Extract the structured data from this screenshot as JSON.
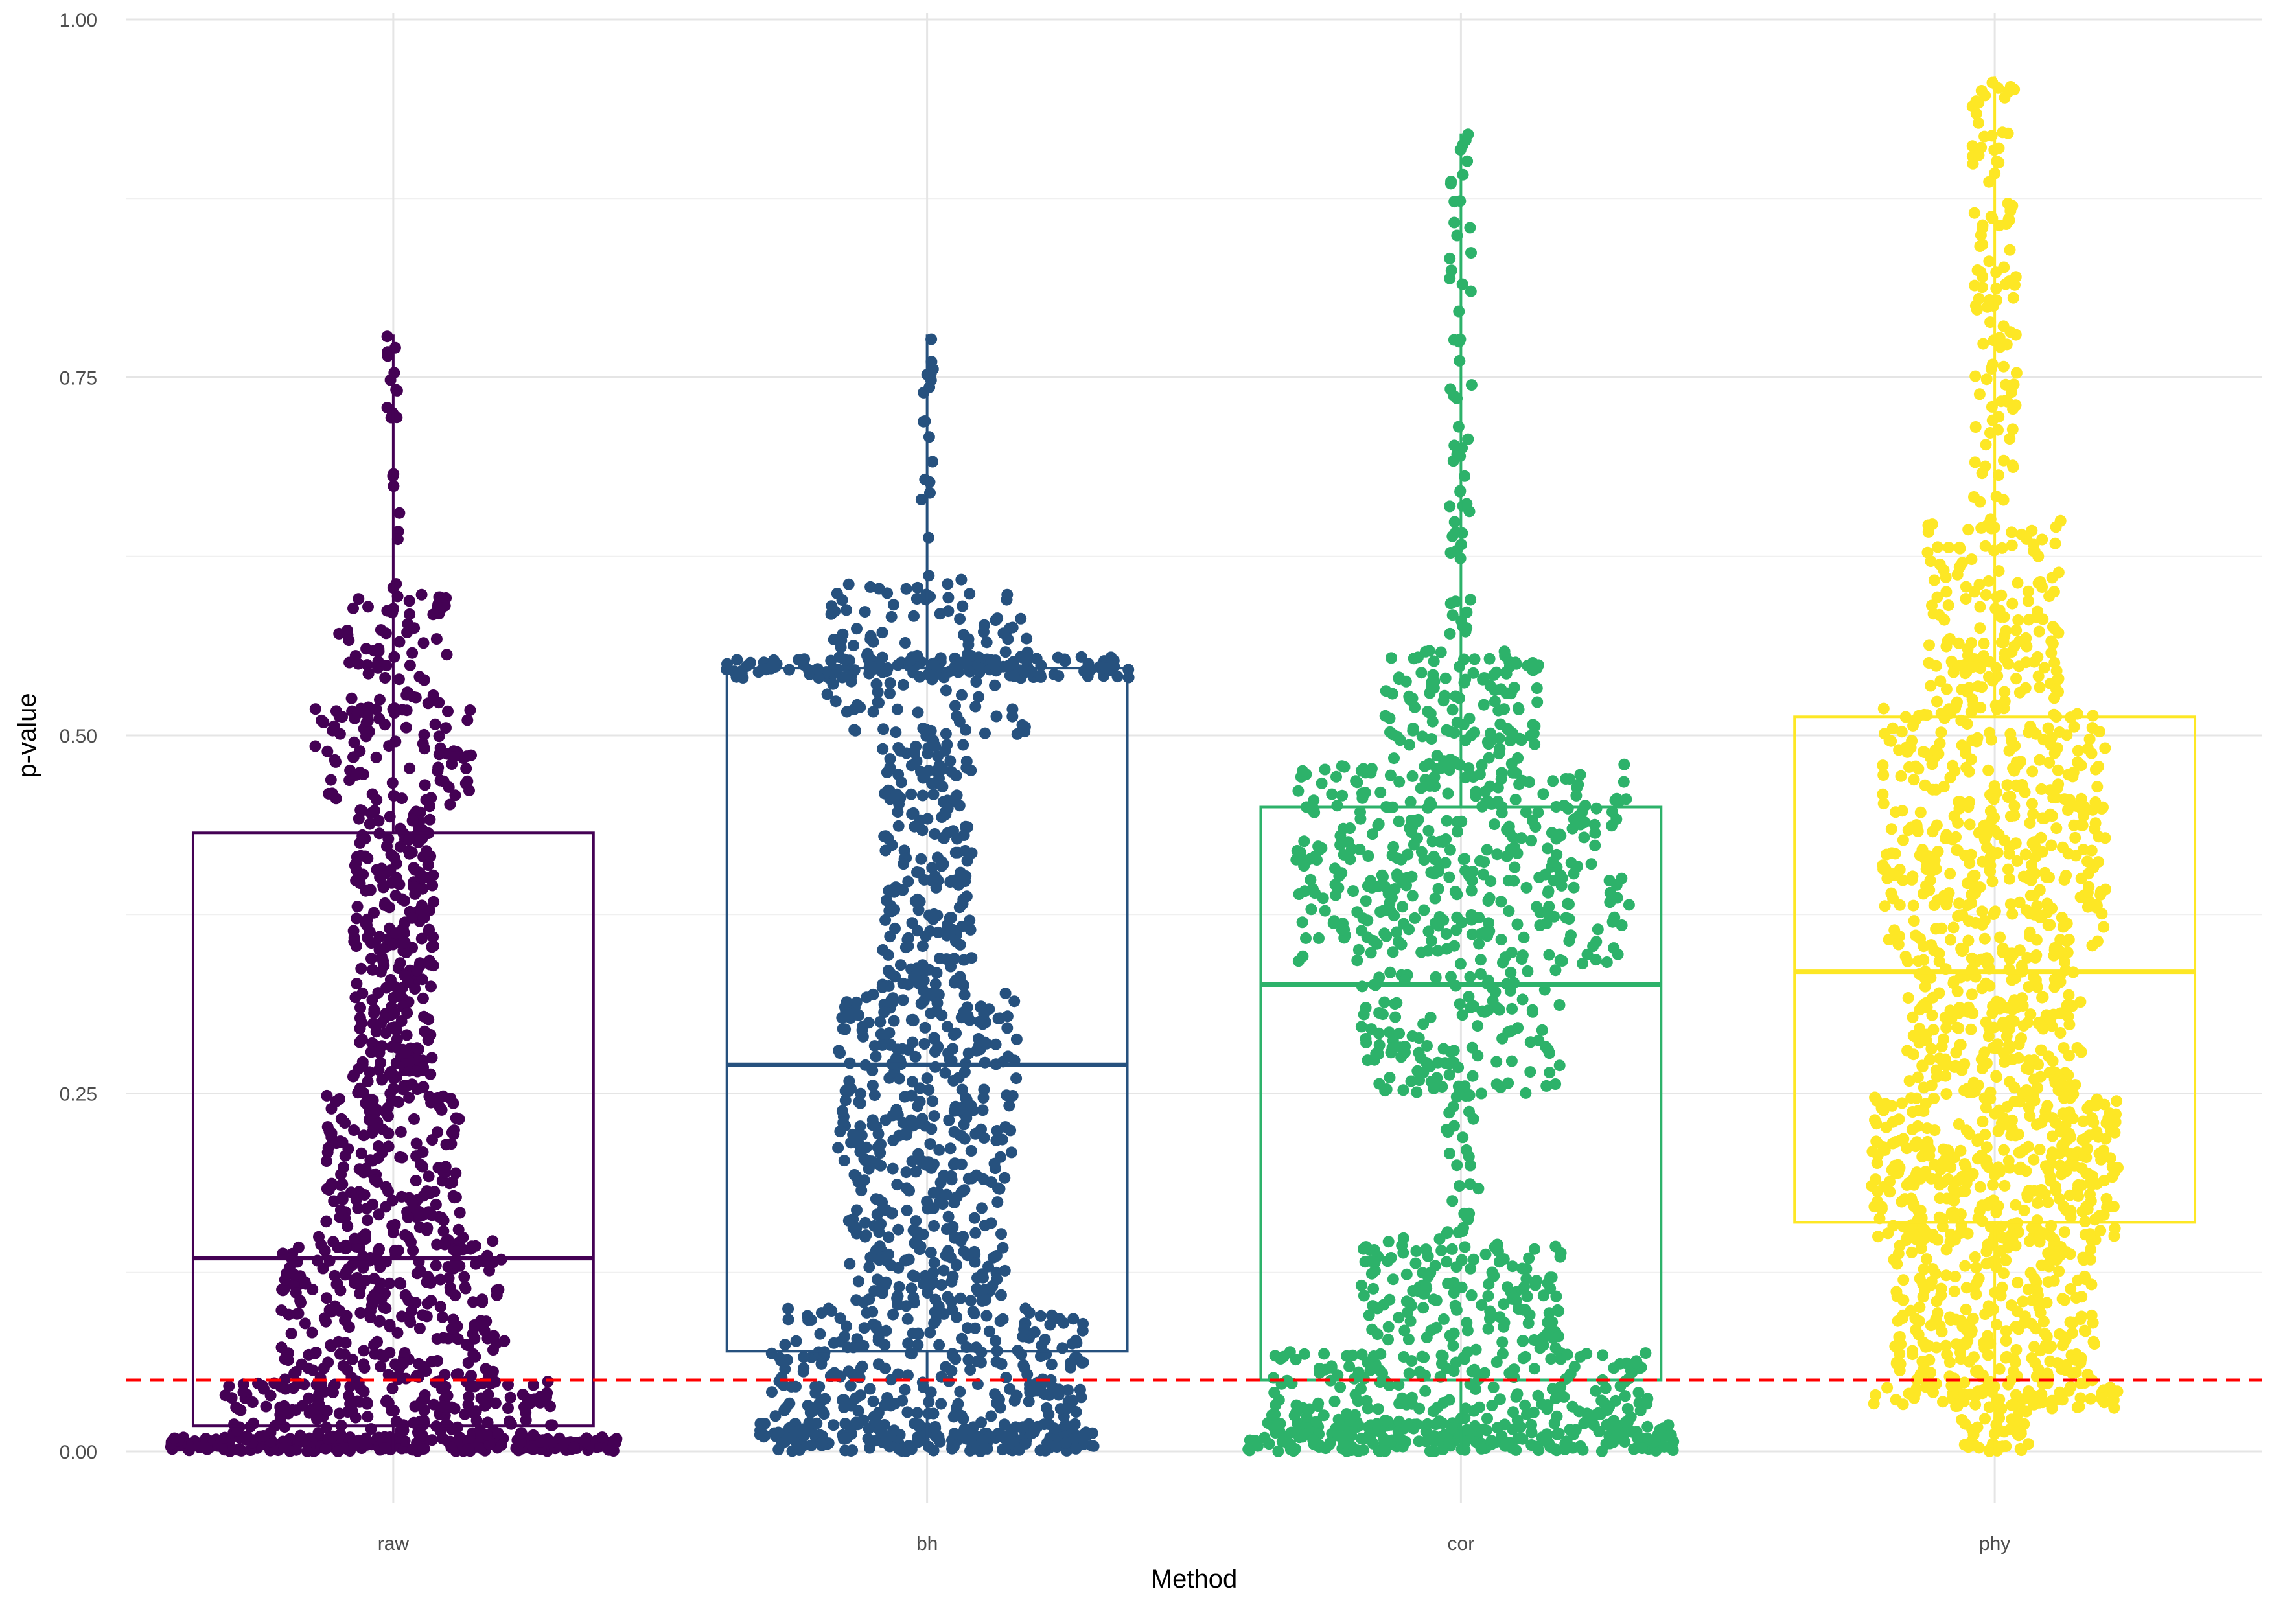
{
  "chart_data": {
    "type": "boxplot",
    "xlabel": "Method",
    "ylabel": "p-value",
    "ylim": [
      0,
      1
    ],
    "y_ticks": [
      "0.00",
      "0.25",
      "0.50",
      "0.75",
      "1.00"
    ],
    "y_tick_values": [
      0,
      0.25,
      0.5,
      0.75,
      1.0
    ],
    "grid": true,
    "legend": "none",
    "reference_line": {
      "y": 0.05,
      "color": "#ff0000",
      "style": "dashed"
    },
    "categories": [
      "raw",
      "bh",
      "cor",
      "phy"
    ],
    "series": [
      {
        "category": "raw",
        "color": "#440154",
        "min": 0.0,
        "q1": 0.018,
        "median": 0.135,
        "q3": 0.432,
        "max": 0.78
      },
      {
        "category": "bh",
        "color": "#26517e",
        "min": 0.0,
        "q1": 0.07,
        "median": 0.27,
        "q3": 0.547,
        "max": 0.78
      },
      {
        "category": "cor",
        "color": "#2db26a",
        "min": 0.0,
        "q1": 0.05,
        "median": 0.326,
        "q3": 0.45,
        "max": 0.92
      },
      {
        "category": "phy",
        "color": "#fde725",
        "min": 0.0,
        "q1": 0.16,
        "median": 0.335,
        "q3": 0.513,
        "max": 0.96
      }
    ]
  }
}
